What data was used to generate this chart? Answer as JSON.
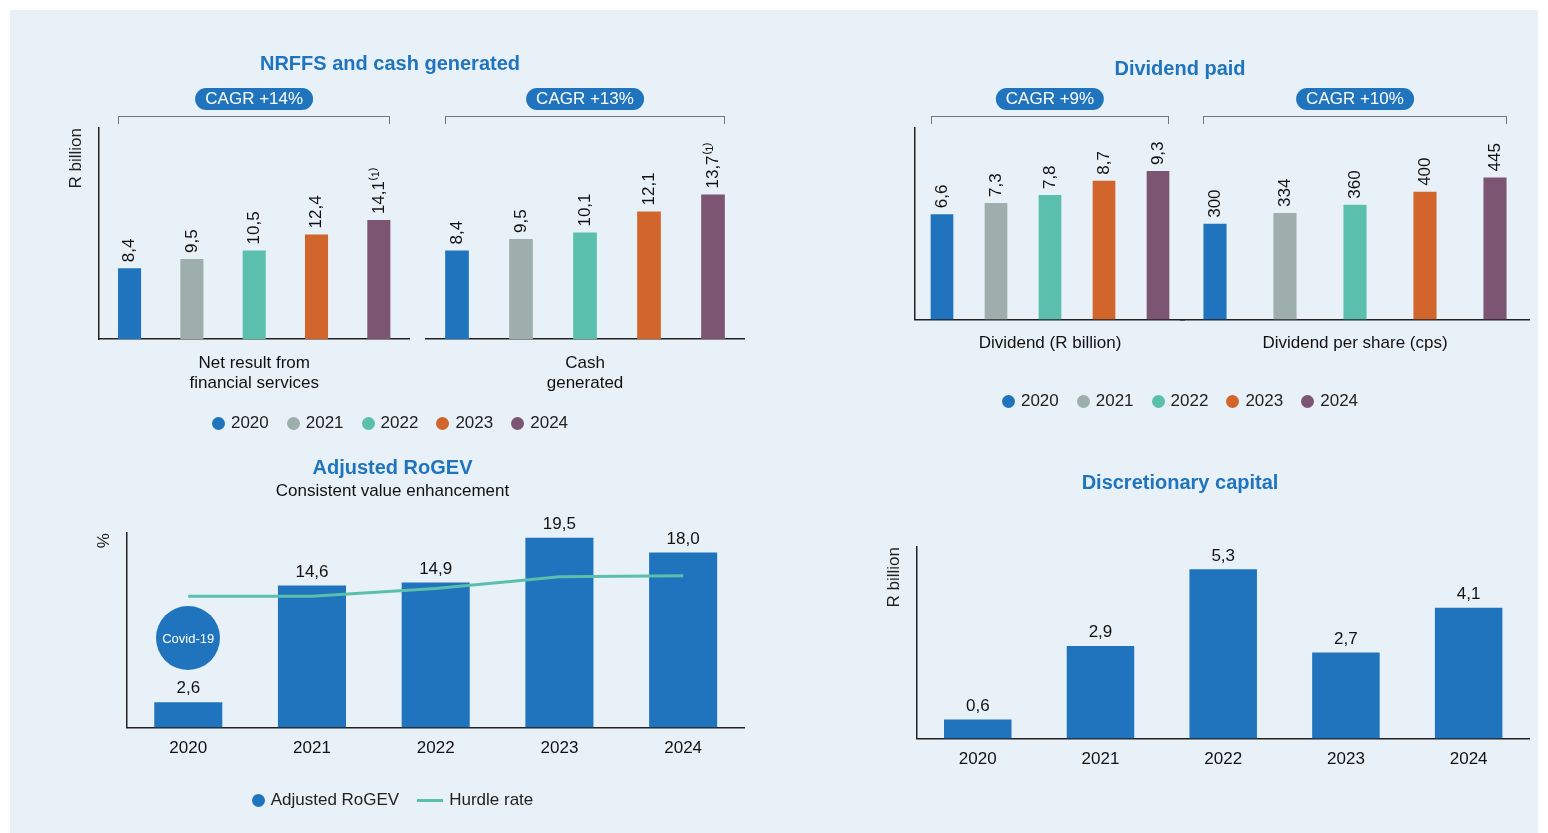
{
  "chart_data": [
    {
      "type": "bar",
      "stacked": true,
      "title": "NRFFS and cash generated",
      "xlabel": "Net result from financial services",
      "ylabel": "R billion",
      "tick_labels": false,
      "legend": "bottom",
      "annotations": [
        "CAGR +14%"
      ],
      "categories": [
        null,
        null,
        null,
        null,
        null
      ],
      "series": [
        {
          "name": "2020",
          "color": "#1f74bd",
          "values": [
            8.4,
            null,
            null,
            null,
            null
          ],
          "value_labels": [
            "8,4",
            null,
            null,
            null,
            null
          ]
        },
        {
          "name": "2021",
          "color": "#9eaeac",
          "values": [
            null,
            9.5,
            null,
            null,
            null
          ],
          "value_labels": [
            null,
            "9,5",
            null,
            null,
            null
          ]
        },
        {
          "name": "2022",
          "color": "#5bbfae",
          "values": [
            null,
            null,
            10.5,
            null,
            null
          ],
          "value_labels": [
            null,
            null,
            "10,5",
            null,
            null
          ]
        },
        {
          "name": "2023",
          "color": "#d2652c",
          "values": [
            null,
            null,
            null,
            12.4,
            null
          ],
          "value_labels": [
            null,
            null,
            null,
            "12,4",
            null
          ]
        },
        {
          "name": "2024",
          "color": "#7b5571",
          "values": [
            null,
            null,
            null,
            null,
            14.1
          ],
          "value_labels": [
            null,
            null,
            null,
            null,
            "14,1⁽¹⁾"
          ]
        }
      ]
    },
    {
      "type": "bar",
      "stacked": true,
      "xlabel": "Cash generated",
      "tick_labels": false,
      "annotations": [
        "CAGR +13%"
      ],
      "categories": [
        null,
        null,
        null,
        null,
        null
      ],
      "series": [
        {
          "name": "2020",
          "color": "#1f74bd",
          "values": [
            8.4,
            null,
            null,
            null,
            null
          ],
          "value_labels": [
            "8,4",
            null,
            null,
            null,
            null
          ]
        },
        {
          "name": "2021",
          "color": "#9eaeac",
          "values": [
            null,
            9.5,
            null,
            null,
            null
          ],
          "value_labels": [
            null,
            "9,5",
            null,
            null,
            null
          ]
        },
        {
          "name": "2022",
          "color": "#5bbfae",
          "values": [
            null,
            null,
            10.1,
            null,
            null
          ],
          "value_labels": [
            null,
            null,
            "10,1",
            null,
            null
          ]
        },
        {
          "name": "2023",
          "color": "#d2652c",
          "values": [
            null,
            null,
            null,
            12.1,
            null
          ],
          "value_labels": [
            null,
            null,
            null,
            "12,1",
            null
          ]
        },
        {
          "name": "2024",
          "color": "#7b5571",
          "values": [
            null,
            null,
            null,
            null,
            13.7
          ],
          "value_labels": [
            null,
            null,
            null,
            null,
            "13,7⁽¹⁾"
          ]
        }
      ]
    },
    {
      "type": "bar",
      "stacked": true,
      "title": "Dividend paid",
      "xlabel": "Dividend (R billion)",
      "tick_labels": false,
      "legend": "bottom",
      "annotations": [
        "CAGR +9%"
      ],
      "categories": [
        null,
        null,
        null,
        null,
        null
      ],
      "series": [
        {
          "name": "2020",
          "color": "#1f74bd",
          "values": [
            6.6,
            null,
            null,
            null,
            null
          ],
          "value_labels": [
            "6,6",
            null,
            null,
            null,
            null
          ]
        },
        {
          "name": "2021",
          "color": "#9eaeac",
          "values": [
            null,
            7.3,
            null,
            null,
            null
          ],
          "value_labels": [
            null,
            "7,3",
            null,
            null,
            null
          ]
        },
        {
          "name": "2022",
          "color": "#5bbfae",
          "values": [
            null,
            null,
            7.8,
            null,
            null
          ],
          "value_labels": [
            null,
            null,
            "7,8",
            null,
            null
          ]
        },
        {
          "name": "2023",
          "color": "#d2652c",
          "values": [
            null,
            null,
            null,
            8.7,
            null
          ],
          "value_labels": [
            null,
            null,
            null,
            "8,7",
            null
          ]
        },
        {
          "name": "2024",
          "color": "#7b5571",
          "values": [
            null,
            null,
            null,
            null,
            9.3
          ],
          "value_labels": [
            null,
            null,
            null,
            null,
            "9,3"
          ]
        }
      ]
    },
    {
      "type": "bar",
      "stacked": true,
      "xlabel": "Dividend per share (cps)",
      "tick_labels": false,
      "annotations": [
        "CAGR +10%"
      ],
      "categories": [
        null,
        null,
        null,
        null,
        null
      ],
      "series": [
        {
          "name": "2020",
          "color": "#1f74bd",
          "values": [
            300,
            null,
            null,
            null,
            null
          ],
          "value_labels": [
            "300",
            null,
            null,
            null,
            null
          ]
        },
        {
          "name": "2021",
          "color": "#9eaeac",
          "values": [
            null,
            334,
            null,
            null,
            null
          ],
          "value_labels": [
            null,
            "334",
            null,
            null,
            null
          ]
        },
        {
          "name": "2022",
          "color": "#5bbfae",
          "values": [
            null,
            null,
            360,
            null,
            null
          ],
          "value_labels": [
            null,
            null,
            "360",
            null,
            null
          ]
        },
        {
          "name": "2023",
          "color": "#d2652c",
          "values": [
            null,
            null,
            null,
            400,
            null
          ],
          "value_labels": [
            null,
            null,
            null,
            "400",
            null
          ]
        },
        {
          "name": "2024",
          "color": "#7b5571",
          "values": [
            null,
            null,
            null,
            null,
            445
          ],
          "value_labels": [
            null,
            null,
            null,
            null,
            "445"
          ]
        }
      ]
    },
    {
      "type": "bar",
      "title": "Adjusted RoGEV",
      "subtitle": "Consistent value enhancement",
      "ylabel": "%",
      "tick_labels": "x",
      "legend": "bottom",
      "marker": "none",
      "annotations": [
        "Covid-19"
      ],
      "categories": [
        "2020",
        "2021",
        "2022",
        "2023",
        "2024"
      ],
      "series": [
        {
          "name": "Adjusted RoGEV",
          "color": "#1f74bd",
          "values": [
            2.6,
            14.6,
            14.9,
            19.5,
            18.0
          ],
          "value_labels": [
            "2,6",
            "14,6",
            "14,9",
            "19,5",
            "18,0"
          ]
        },
        {
          "name": "Hurdle rate",
          "type": "line",
          "color": "#5bbfae",
          "values": [
            13.5,
            13.5,
            14.3,
            15.5,
            15.6
          ]
        }
      ]
    },
    {
      "type": "bar",
      "title": "Discretionary capital",
      "ylabel": "R billion",
      "tick_labels": "x",
      "categories": [
        "2020",
        "2021",
        "2022",
        "2023",
        "2024"
      ],
      "series": [
        {
          "color": "#1f74bd",
          "values": [
            0.6,
            2.9,
            5.3,
            2.7,
            4.1
          ],
          "value_labels": [
            "0,6",
            "2,9",
            "5,3",
            "2,7",
            "4,1"
          ]
        }
      ]
    }
  ]
}
